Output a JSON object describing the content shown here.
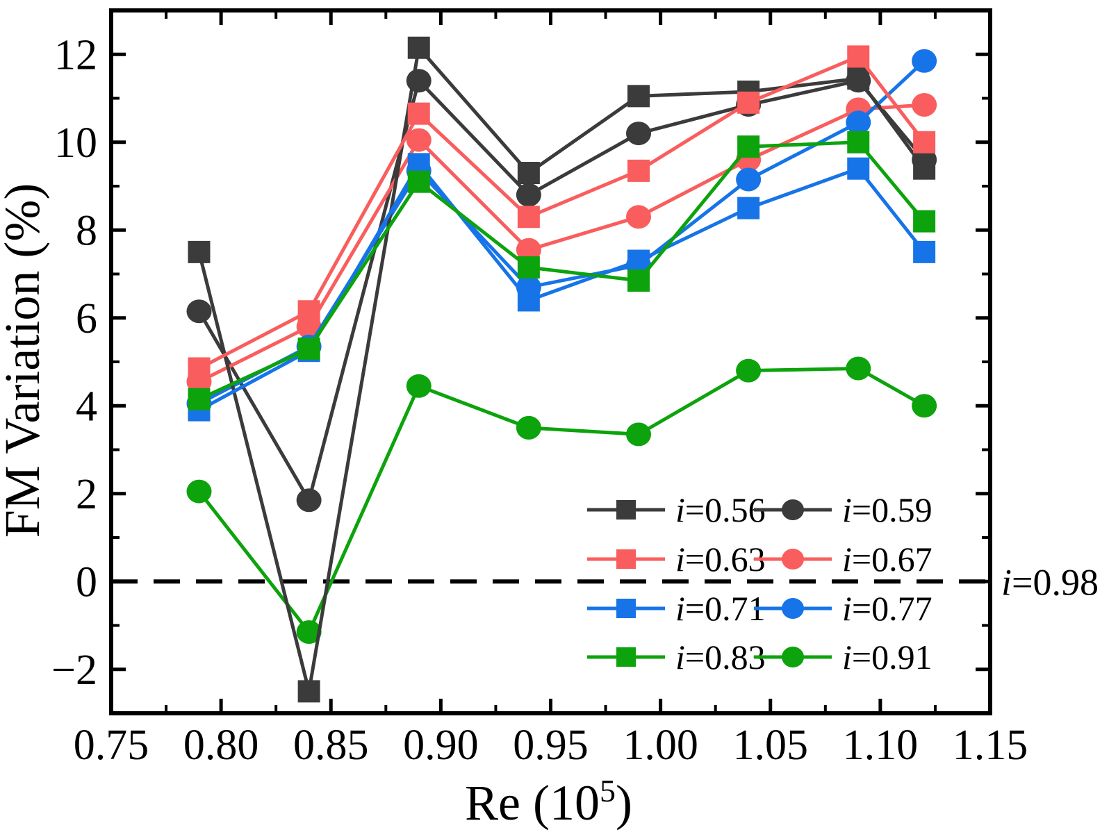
{
  "chart_data": {
    "type": "line",
    "title": "",
    "xlabel": {
      "main": "Re (10",
      "sup": "5",
      "close": ")"
    },
    "ylabel": "FM Variation (%)",
    "xlim": [
      0.75,
      1.15
    ],
    "ylim": [
      -3,
      13
    ],
    "grid": false,
    "xtick_values": [
      0.75,
      0.8,
      0.85,
      0.9,
      0.95,
      1.0,
      1.05,
      1.1,
      1.15
    ],
    "xtick_labels": [
      "0.75",
      "0.80",
      "0.85",
      "0.90",
      "0.95",
      "1.00",
      "1.05",
      "1.10",
      "1.15"
    ],
    "xtick_minor_values": [
      0.775,
      0.825,
      0.875,
      0.925,
      0.975,
      1.025,
      1.075,
      1.125
    ],
    "ytick_values": [
      -2,
      0,
      2,
      4,
      6,
      8,
      10,
      12
    ],
    "ytick_labels": [
      "−2",
      "0",
      "2",
      "4",
      "6",
      "8",
      "10",
      "12"
    ],
    "ytick_minor_values": [
      -1,
      1,
      3,
      5,
      7,
      9,
      11
    ],
    "x": [
      0.79,
      0.84,
      0.89,
      0.94,
      0.99,
      1.04,
      1.09,
      1.12
    ],
    "series": [
      {
        "name": "i=0.56",
        "label_var": "i",
        "label_rest": "=0.56",
        "marker": "square",
        "color": "#3B3B3B",
        "values": [
          7.5,
          -2.5,
          12.15,
          9.3,
          11.05,
          11.15,
          11.45,
          9.4
        ]
      },
      {
        "name": "i=0.59",
        "label_var": "i",
        "label_rest": "=0.59",
        "marker": "circle",
        "color": "#3B3B3B",
        "values": [
          6.15,
          1.85,
          11.4,
          8.8,
          10.2,
          10.85,
          11.4,
          9.6
        ]
      },
      {
        "name": "i=0.63",
        "label_var": "i",
        "label_rest": "=0.63",
        "marker": "square",
        "color": "#F95D5D",
        "values": [
          4.85,
          6.15,
          10.65,
          8.3,
          9.35,
          10.9,
          11.95,
          10.0
        ]
      },
      {
        "name": "i=0.67",
        "label_var": "i",
        "label_rest": "=0.67",
        "marker": "circle",
        "color": "#F95D5D",
        "values": [
          4.55,
          5.8,
          10.05,
          7.55,
          8.3,
          9.6,
          10.75,
          10.85
        ]
      },
      {
        "name": "i=0.71",
        "label_var": "i",
        "label_rest": "=0.71",
        "marker": "square",
        "color": "#1674E8",
        "values": [
          3.9,
          5.25,
          9.5,
          6.4,
          7.3,
          8.5,
          9.4,
          7.5
        ]
      },
      {
        "name": "i=0.77",
        "label_var": "i",
        "label_rest": "=0.77",
        "marker": "circle",
        "color": "#1674E8",
        "values": [
          4.05,
          5.35,
          9.35,
          6.7,
          7.2,
          9.15,
          10.45,
          11.85
        ]
      },
      {
        "name": "i=0.83",
        "label_var": "i",
        "label_rest": "=0.83",
        "marker": "square",
        "color": "#0CA30C",
        "values": [
          4.15,
          5.3,
          9.1,
          7.15,
          6.85,
          9.9,
          10.0,
          8.2
        ]
      },
      {
        "name": "i=0.91",
        "label_var": "i",
        "label_rest": "=0.91",
        "marker": "circle",
        "color": "#0CA30C",
        "values": [
          2.05,
          -1.15,
          4.45,
          3.5,
          3.35,
          4.8,
          4.85,
          4.0
        ]
      }
    ],
    "draw_order": [
      "i=0.59",
      "i=0.67",
      "i=0.77",
      "i=0.91",
      "i=0.56",
      "i=0.63",
      "i=0.71",
      "i=0.83"
    ],
    "reference_line": {
      "y": 0,
      "style": "dashed",
      "color": "#000000",
      "label_var": "i",
      "label_rest": "=0.98"
    },
    "legend": {
      "position": "inside-lower-right",
      "rows": [
        [
          "i=0.56",
          "i=0.59"
        ],
        [
          "i=0.63",
          "i=0.67"
        ],
        [
          "i=0.71",
          "i=0.77"
        ],
        [
          "i=0.83",
          "i=0.91"
        ]
      ]
    },
    "axis_color": "#000000"
  }
}
